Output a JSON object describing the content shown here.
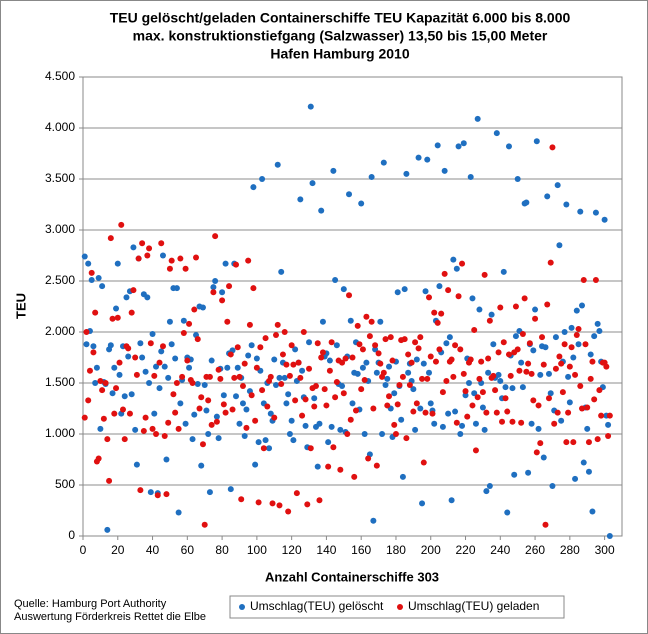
{
  "chart_data": {
    "type": "scatter",
    "title": [
      "TEU gelöscht/geladen Containerschiffe TEU Kapazität 6.000 bis 8.000",
      "max. konstruktionstiefgang (Salzwasser) 13,50 bis 15,00 Meter",
      "Hafen Hamburg 2010"
    ],
    "y_label": "TEU",
    "x_label": "Anzahl Containerschiffe 303",
    "notes": [
      "Quelle: Hamburg Port Authority",
      "Auswertung Förderkreis Rettet die Elbe"
    ],
    "xlim": [
      0,
      310
    ],
    "xticks": [
      0,
      20,
      40,
      60,
      80,
      100,
      120,
      140,
      160,
      180,
      200,
      220,
      240,
      260,
      280,
      300
    ],
    "ylim": [
      0,
      4500
    ],
    "yticks": [
      0,
      500,
      {
        "value": 1000,
        "label": "1.000"
      },
      {
        "value": 1500,
        "label": "1.500"
      },
      {
        "value": 2000,
        "label": "2.000"
      },
      {
        "value": 2500,
        "label": "2.500"
      },
      {
        "value": 3000,
        "label": "3.000"
      },
      {
        "value": 3500,
        "label": "3.500"
      },
      {
        "value": 4000,
        "label": "4.000"
      },
      {
        "value": 4500,
        "label": "4.500"
      }
    ],
    "grid": true,
    "legend": "bottom",
    "x": [
      1,
      2,
      3,
      4,
      5,
      6,
      7,
      8,
      9,
      10,
      11,
      12,
      13,
      14,
      15,
      16,
      17,
      18,
      19,
      20,
      21,
      22,
      23,
      24,
      25,
      26,
      27,
      28,
      29,
      30,
      31,
      32,
      33,
      34,
      35,
      36,
      37,
      38,
      39,
      40,
      41,
      42,
      43,
      44,
      45,
      46,
      47,
      48,
      49,
      50,
      51,
      52,
      53,
      54,
      55,
      56,
      57,
      58,
      59,
      60,
      61,
      62,
      63,
      64,
      65,
      66,
      67,
      68,
      69,
      70,
      71,
      72,
      73,
      74,
      75,
      76,
      77,
      78,
      79,
      80,
      81,
      82,
      83,
      84,
      85,
      86,
      87,
      88,
      89,
      90,
      91,
      92,
      93,
      94,
      95,
      96,
      97,
      98,
      99,
      100,
      101,
      102,
      103,
      104,
      105,
      106,
      107,
      108,
      109,
      110,
      111,
      112,
      113,
      114,
      115,
      116,
      117,
      118,
      119,
      120,
      121,
      122,
      123,
      124,
      125,
      126,
      127,
      128,
      129,
      130,
      131,
      132,
      133,
      134,
      135,
      136,
      137,
      138,
      139,
      140,
      141,
      142,
      143,
      144,
      145,
      146,
      147,
      148,
      149,
      150,
      151,
      152,
      153,
      154,
      155,
      156,
      157,
      158,
      159,
      160,
      161,
      162,
      163,
      164,
      165,
      166,
      167,
      168,
      169,
      170,
      171,
      172,
      173,
      174,
      175,
      176,
      177,
      178,
      179,
      180,
      181,
      182,
      183,
      184,
      185,
      186,
      187,
      188,
      189,
      190,
      191,
      192,
      193,
      194,
      195,
      196,
      197,
      198,
      199,
      200,
      201,
      202,
      203,
      204,
      205,
      206,
      207,
      208,
      209,
      210,
      211,
      212,
      213,
      214,
      215,
      216,
      217,
      218,
      219,
      220,
      221,
      222,
      223,
      224,
      225,
      226,
      227,
      228,
      229,
      230,
      231,
      232,
      233,
      234,
      235,
      236,
      237,
      238,
      239,
      240,
      241,
      242,
      243,
      244,
      245,
      246,
      247,
      248,
      249,
      250,
      251,
      252,
      253,
      254,
      255,
      256,
      257,
      258,
      259,
      260,
      261,
      262,
      263,
      264,
      265,
      266,
      267,
      268,
      269,
      270,
      271,
      272,
      273,
      274,
      275,
      276,
      277,
      278,
      279,
      280,
      281,
      282,
      283,
      284,
      285,
      286,
      287,
      288,
      289,
      290,
      291,
      292,
      293,
      294,
      295,
      296,
      297,
      298,
      299,
      300,
      301,
      302,
      303
    ],
    "series": [
      {
        "name": "Umschlag(TEU) gelöscht",
        "color": "#1f6fc0",
        "values": [
          2740,
          1880,
          2670,
          2010,
          2510,
          1860,
          1500,
          1650,
          2530,
          1050,
          2450,
          1510,
          1490,
          60,
          1830,
          1870,
          1400,
          1650,
          2230,
          2670,
          1580,
          1200,
          1860,
          1370,
          2340,
          1760,
          2400,
          1390,
          2830,
          1040,
          700,
          2720,
          1890,
          1750,
          2370,
          1610,
          2340,
          1500,
          430,
          1980,
          1200,
          1660,
          420,
          1450,
          1810,
          2750,
          1660,
          750,
          1550,
          2100,
          1880,
          2430,
          1740,
          2430,
          230,
          1300,
          1530,
          2110,
          1100,
          1750,
          1650,
          1730,
          950,
          1190,
          1970,
          1490,
          2250,
          690,
          2240,
          1480,
          1230,
          1000,
          430,
          1720,
          2440,
          2500,
          1170,
          960,
          1640,
          2390,
          1380,
          2670,
          1650,
          1790,
          460,
          1820,
          2670,
          1370,
          1650,
          1100,
          1550,
          1300,
          980,
          1240,
          1770,
          1420,
          1870,
          3420,
          700,
          1740,
          920,
          1620,
          3500,
          1300,
          940,
          1500,
          860,
          1200,
          1130,
          1730,
          1480,
          3640,
          1550,
          2590,
          1700,
          1550,
          1300,
          1390,
          1000,
          1130,
          940,
          1830,
          1520,
          1700,
          3300,
          1620,
          1360,
          1080,
          870,
          1900,
          4210,
          3460,
          1350,
          1070,
          680,
          1100,
          3190,
          2100,
          1760,
          1790,
          920,
          1720,
          1070,
          3580,
          2510,
          1870,
          1490,
          1040,
          1470,
          2420,
          1020,
          1760,
          3350,
          2110,
          1300,
          1600,
          1900,
          1590,
          1240,
          3260,
          1650,
          1000,
          1700,
          1520,
          800,
          3520,
          150,
          1830,
          1600,
          1700,
          2100,
          1000,
          3660,
          1480,
          1540,
          1660,
          1250,
          970,
          1400,
          1710,
          2390,
          1470,
          1140,
          580,
          2420,
          3550,
          1600,
          1690,
          1520,
          1440,
          1040,
          1730,
          3710,
          1250,
          320,
          1690,
          2400,
          3690,
          1600,
          1300,
          1230,
          1100,
          2110,
          3830,
          2450,
          1800,
          1070,
          3580,
          1890,
          1200,
          1950,
          350,
          2710,
          1220,
          2620,
          3820,
          1000,
          1080,
          3850,
          1380,
          1740,
          1500,
          3520,
          2330,
          1400,
          1100,
          4090,
          2220,
          1500,
          1260,
          1040,
          440,
          1600,
          490,
          2170,
          1880,
          1550,
          3950,
          1580,
          1520,
          1350,
          2590,
          1460,
          230,
          3820,
          1770,
          1450,
          600,
          1960,
          3500,
          2010,
          1700,
          1460,
          3260,
          3270,
          620,
          1880,
          1100,
          1820,
          2220,
          3870,
          1050,
          1580,
          1860,
          770,
          1850,
          3330,
          1590,
          1400,
          490,
          1230,
          1950,
          3440,
          2850,
          1130,
          1710,
          2000,
          3250,
          1560,
          1310,
          2040,
          1750,
          560,
          2210,
          1880,
          3180,
          2260,
          720,
          1260,
          1050,
          630,
          1780,
          240,
          1960,
          3170,
          2080,
          2010,
          1710,
          1460,
          3100,
          1180,
          1090,
          0
        ]
      },
      {
        "name": "Umschlag(TEU) geladen",
        "color": "#e01010",
        "values": [
          1160,
          2000,
          1330,
          1620,
          2580,
          1800,
          2190,
          730,
          760,
          1520,
          1430,
          1150,
          1500,
          950,
          540,
          2920,
          2130,
          1200,
          1450,
          2140,
          1700,
          3050,
          1240,
          950,
          1860,
          1840,
          1200,
          2190,
          2410,
          1750,
          1580,
          2720,
          450,
          2870,
          1030,
          1160,
          2750,
          2820,
          1890,
          1050,
          1570,
          1000,
          400,
          1700,
          2870,
          1860,
          980,
          410,
          1110,
          2620,
          2700,
          1390,
          1210,
          1500,
          1050,
          2720,
          1560,
          1990,
          2620,
          1720,
          2080,
          1530,
          1500,
          2220,
          2730,
          1930,
          1250,
          1360,
          900,
          110,
          1560,
          1330,
          1560,
          1090,
          2390,
          2940,
          1120,
          1630,
          1540,
          2310,
          1290,
          1210,
          2100,
          2450,
          1780,
          1240,
          1550,
          2660,
          1850,
          1560,
          360,
          1470,
          1690,
          1060,
          2700,
          2070,
          1380,
          2430,
          1130,
          1650,
          330,
          1850,
          1430,
          860,
          1940,
          1270,
          1520,
          1560,
          320,
          1160,
          1970,
          2070,
          300,
          1490,
          1780,
          2000,
          1680,
          240,
          1570,
          1870,
          1680,
          1330,
          420,
          1700,
          1550,
          1180,
          2000,
          1340,
          310,
          1640,
          860,
          1450,
          1270,
          1470,
          1890,
          350,
          1750,
          1800,
          1440,
          1280,
          680,
          1620,
          1900,
          870,
          1360,
          1510,
          1720,
          650,
          1700,
          1400,
          1740,
          1000,
          2360,
          1140,
          1750,
          580,
          1230,
          2060,
          1880,
          1440,
          1830,
          1530,
          2150,
          760,
          1960,
          2100,
          1250,
          1870,
          690,
          1790,
          1690,
          1560,
          1600,
          1930,
          1280,
          1370,
          1950,
          1720,
          1090,
          1000,
          1290,
          1480,
          1920,
          1560,
          1930,
          960,
          1780,
          1480,
          1700,
          1220,
          1900,
          1300,
          1840,
          1950,
          1540,
          720,
          1210,
          1540,
          2340,
          1760,
          1200,
          2190,
          1710,
          2090,
          1830,
          2180,
          1410,
          2570,
          1520,
          2410,
          1710,
          1730,
          1560,
          1870,
          1110,
          2350,
          1830,
          2670,
          1590,
          1420,
          1170,
          1700,
          1730,
          1280,
          2020,
          840,
          1360,
          1540,
          1710,
          1410,
          2560,
          1210,
          1740,
          2110,
          1550,
          1570,
          1430,
          1210,
          1800,
          2240,
          1120,
          1900,
          1350,
          1220,
          1780,
          1570,
          1120,
          1800,
          2250,
          1830,
          1620,
          1110,
          1980,
          2330,
          1610,
          1690,
          1890,
          1590,
          1330,
          2130,
          820,
          1280,
          910,
          1950,
          1680,
          110,
          2270,
          1350,
          2680,
          3810,
          1100,
          1640,
          1210,
          1760,
          1690,
          1410,
          1880,
          920,
          1210,
          1660,
          1850,
          920,
          1580,
          1970,
          2030,
          1470,
          1250,
          2510,
          1880,
          1260,
          920,
          1540,
          1710,
          1340,
          2510,
          950,
          1430,
          1180,
          1700,
          1700,
          1660,
          980,
          1180
        ]
      }
    ]
  }
}
